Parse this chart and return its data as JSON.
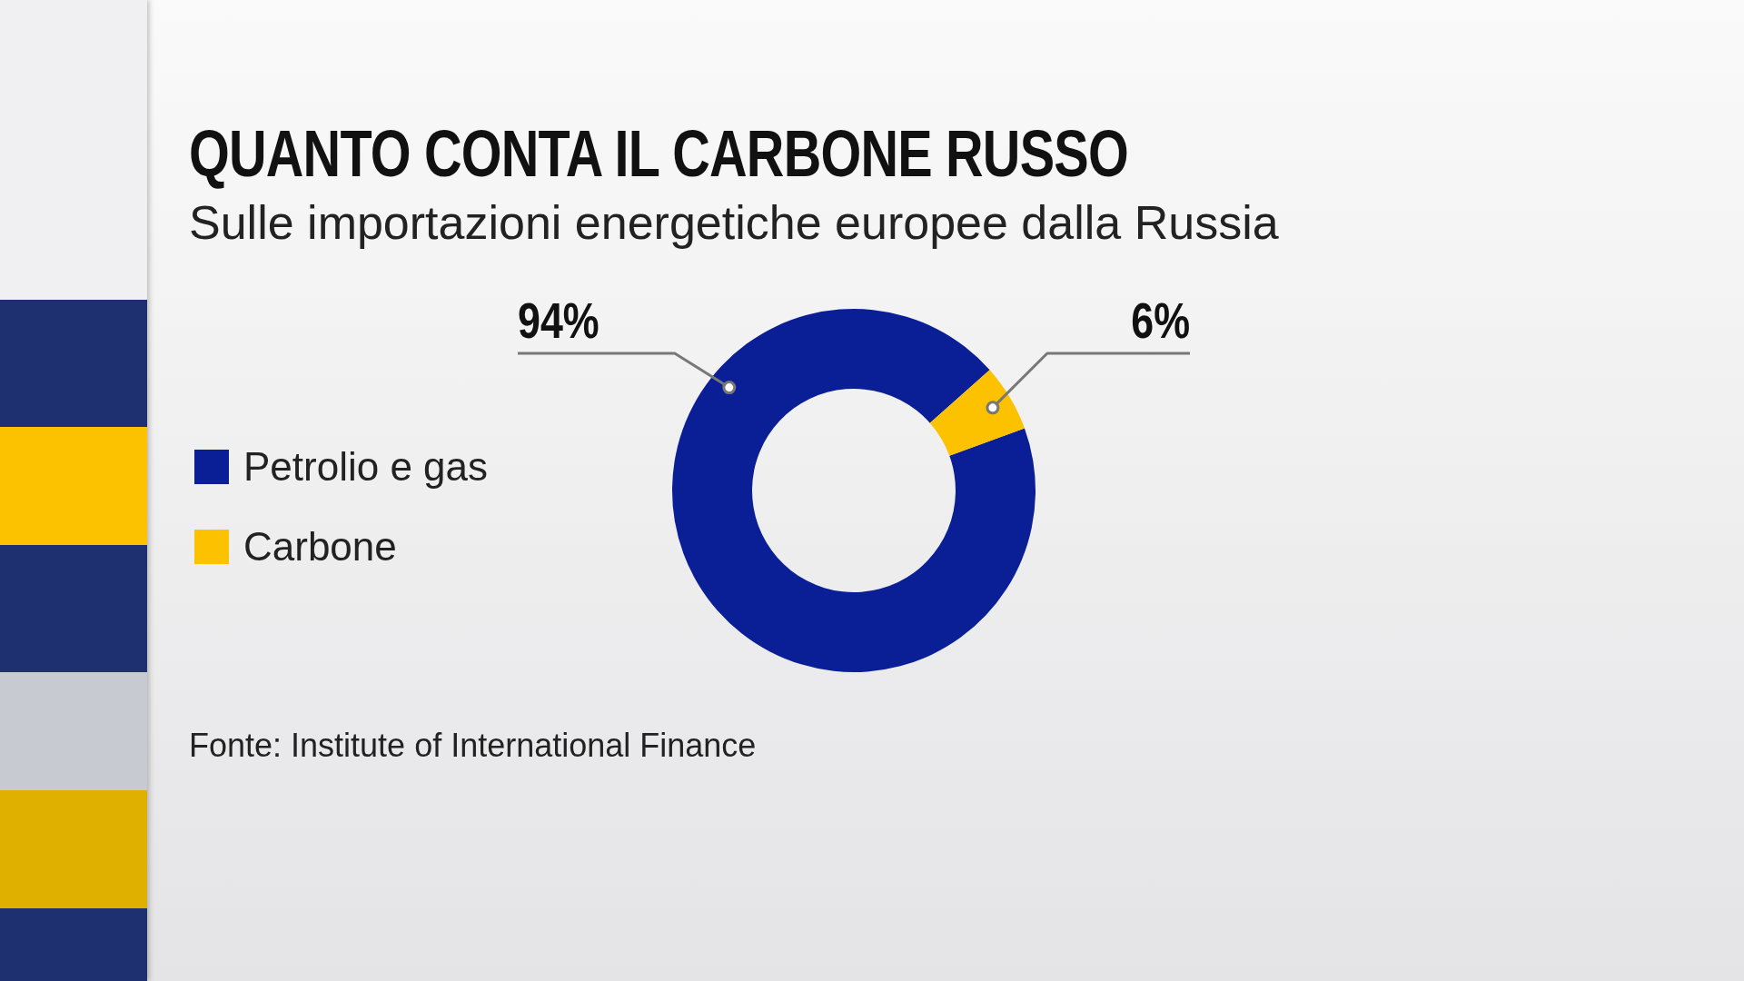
{
  "chart_data": {
    "type": "donut",
    "title": "QUANTO CONTA IL CARBONE RUSSO",
    "subtitle": "Sulle importazioni energetiche europee dalla Russia",
    "categories": [
      "Petrolio e gas",
      "Carbone"
    ],
    "values": [
      94,
      6
    ],
    "colors": [
      "#0a1f96",
      "#fcc200"
    ],
    "value_labels": [
      "94%",
      "6%"
    ],
    "legend": "left",
    "annotations": [
      "Fonte: Institute of International Finance"
    ]
  }
}
